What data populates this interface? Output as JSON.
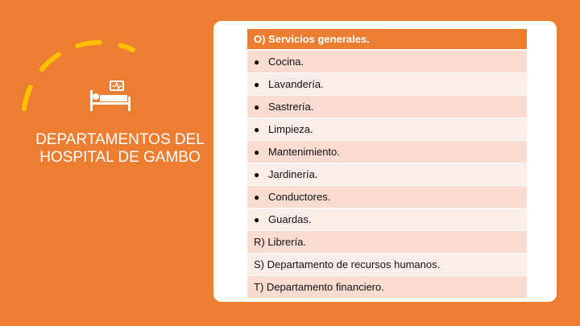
{
  "slide": {
    "title": "DEPARTAMENTOS DEL HOSPITAL DE GAMBO",
    "icon": "hospital-bed-icon",
    "colors": {
      "background": "#ED7D31",
      "accent_arc": "#FFC000",
      "header_row": "#ED7D31",
      "row_odd": "#F9DBD0",
      "row_even": "#FDEEE9"
    }
  },
  "table": {
    "header": "O) Servicios generales.",
    "bullet": "●",
    "items": [
      "Cocina.",
      "Lavandería.",
      "Sastrería.",
      "Limpieza.",
      "Mantenimiento.",
      "Jardinería.",
      "Conductores.",
      "Guardas."
    ],
    "extra_rows": [
      "R) Librería.",
      "S) Departamento de recursos humanos.",
      "T) Departamento financiero."
    ]
  }
}
